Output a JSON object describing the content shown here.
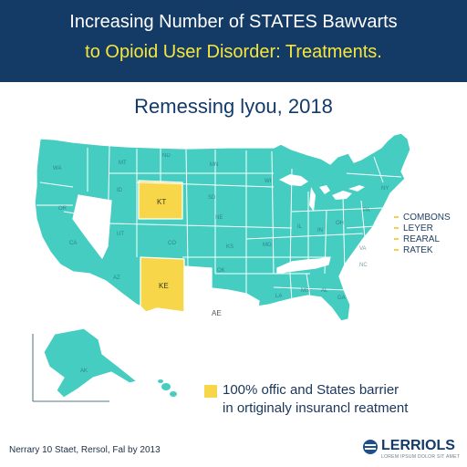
{
  "header": {
    "title_line1": "Increasing Number of STATES Bawvarts",
    "title_line2": "to Opioid User Disorder: Treatments."
  },
  "map": {
    "subtitle": "Remessing lyou, 2018",
    "colors": {
      "standard": "#45cdc1",
      "highlight": "#f7d64a",
      "no_data": "#ffffff",
      "border": "#ffffff",
      "outline": "#1c4a5e"
    },
    "state_labels": [
      "KT",
      "KE",
      "AE"
    ],
    "side_legend": [
      "COMBONS",
      "LEYER",
      "REARAL",
      "RATEK"
    ]
  },
  "legend": {
    "line1": "100% offic and States barrier",
    "line2": "in ortiginaly insurancl reatment"
  },
  "footer": {
    "note": "Nerrary 10 Staet, Rersol, Fal by 2013"
  },
  "logo": {
    "name": "LERRIOLS",
    "tagline": "LOREM IPSUM DOLOR SIT AMET"
  }
}
